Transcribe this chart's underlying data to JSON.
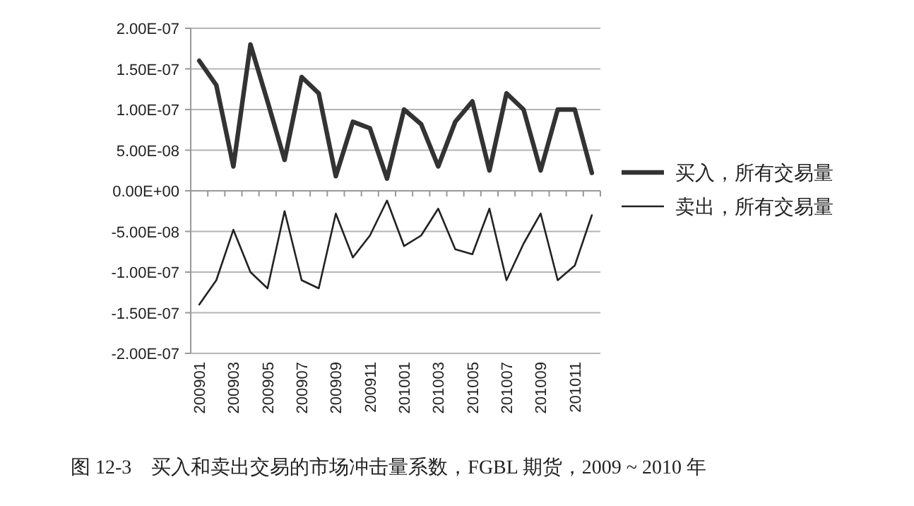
{
  "chart_data": {
    "type": "line",
    "categories": [
      "200901",
      null,
      "200903",
      null,
      "200905",
      null,
      "200907",
      null,
      "200909",
      null,
      "200911",
      null,
      "201001",
      null,
      "201003",
      null,
      "201005",
      null,
      "201007",
      null,
      "201009",
      null,
      "201011",
      null
    ],
    "series": [
      {
        "name": "买入，所有交易量",
        "color": "#333333",
        "values": [
          1.6e-07,
          1.3e-07,
          3e-08,
          1.8e-07,
          1.1e-07,
          3.8e-08,
          1.4e-07,
          1.2e-07,
          1.8e-08,
          8.5e-08,
          7.7e-08,
          1.5e-08,
          1e-07,
          8.2e-08,
          3e-08,
          8.5e-08,
          1.1e-07,
          2.5e-08,
          1.2e-07,
          1e-07,
          2.5e-08,
          1e-07,
          1e-07,
          2.2e-08
        ]
      },
      {
        "name": "卖出，所有交易量",
        "color": "#222222",
        "values": [
          -1.4e-07,
          -1.1e-07,
          -4.8e-08,
          -1e-07,
          -1.2e-07,
          -2.5e-08,
          -1.1e-07,
          -1.2e-07,
          -2.8e-08,
          -8.2e-08,
          -5.5e-08,
          -1.2e-08,
          -6.8e-08,
          -5.5e-08,
          -2.2e-08,
          -7.2e-08,
          -7.8e-08,
          -2.2e-08,
          -1.1e-07,
          -6.5e-08,
          -2.8e-08,
          -1.1e-07,
          -9.2e-08,
          -3e-08
        ]
      }
    ],
    "ylim": [
      -2e-07,
      2e-07
    ],
    "yticks": [
      {
        "value": -2e-07,
        "label": "-2.00E-07"
      },
      {
        "value": -1.5e-07,
        "label": "-1.50E-07"
      },
      {
        "value": -1e-07,
        "label": "-1.00E-07"
      },
      {
        "value": -5e-08,
        "label": "-5.00E-08"
      },
      {
        "value": 0,
        "label": "0.00E+00"
      },
      {
        "value": 5e-08,
        "label": "5.00E-08"
      },
      {
        "value": 1e-07,
        "label": "1.00E-07"
      },
      {
        "value": 1.5e-07,
        "label": "1.50E-07"
      },
      {
        "value": 2e-07,
        "label": "2.00E-07"
      }
    ],
    "grid": "y",
    "legend": "right",
    "marker": "none",
    "annotations": [
      "图 12-3　买入和卖出交易的市场冲击量系数，FGBL 期货，2009 ~ 2010 年"
    ]
  }
}
